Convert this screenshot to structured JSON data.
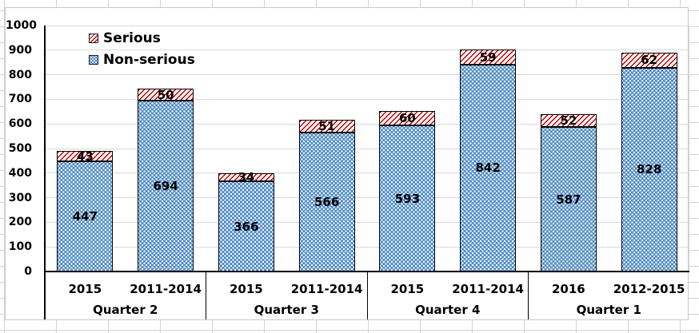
{
  "chart_data": {
    "type": "bar",
    "stacked": true,
    "grid": true,
    "plot_bg": "#FFFFFF",
    "ylim": [
      0,
      1000
    ],
    "ytick_step": 100,
    "yticks": [
      0,
      100,
      200,
      300,
      400,
      500,
      600,
      700,
      800,
      900,
      1000
    ],
    "legend_position": "top-left-inside",
    "bar_value_labels_shown": true,
    "stack_order_bottom_to_top": [
      "Non-serious",
      "Serious"
    ],
    "series": [
      {
        "name": "Serious",
        "color": "#C00000",
        "fill_pattern": "thin-diagonal-stripes",
        "values": [
          43,
          50,
          34,
          51,
          60,
          59,
          52,
          62
        ]
      },
      {
        "name": "Non-serious",
        "color": "#4E8AC8",
        "fill_pattern": "dotted-lattice",
        "values": [
          447,
          694,
          366,
          566,
          593,
          842,
          587,
          828
        ]
      }
    ],
    "categories": [
      "2015",
      "2011-2014",
      "2015",
      "2011-2014",
      "2015",
      "2011-2014",
      "2016",
      "2012-2015"
    ],
    "groups": [
      {
        "label": "Quarter 2",
        "category_indexes": [
          0,
          1
        ]
      },
      {
        "label": "Quarter 3",
        "category_indexes": [
          2,
          3
        ]
      },
      {
        "label": "Quarter 4",
        "category_indexes": [
          4,
          5
        ]
      },
      {
        "label": "Quarter 1",
        "category_indexes": [
          6,
          7
        ]
      }
    ]
  },
  "colors": {
    "axis": "#000000",
    "gridline": "#D9D9D9",
    "chart_border": "#C8C8C8",
    "worksheet_gridline": "#D4D4D4",
    "label_text": "#000000"
  }
}
